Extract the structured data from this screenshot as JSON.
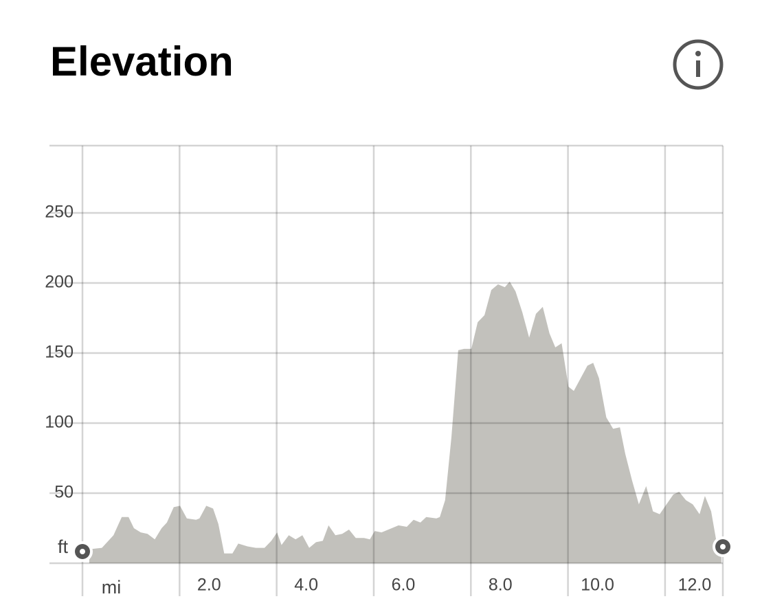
{
  "header": {
    "title": "Elevation"
  },
  "chart_data": {
    "type": "area",
    "xlabel": "mi",
    "ylabel": "ft",
    "color": "#c2c1bc",
    "grid": true,
    "xlim": [
      0,
      13.19
    ],
    "ylim": [
      0,
      300
    ],
    "xticks": [
      {
        "value": 2,
        "label": "2.0"
      },
      {
        "value": 4,
        "label": "4.0"
      },
      {
        "value": 6,
        "label": "6.0"
      },
      {
        "value": 8,
        "label": "8.0"
      },
      {
        "value": 10,
        "label": "10.0"
      },
      {
        "value": 12,
        "label": "12.0"
      }
    ],
    "yticks": [
      50,
      100,
      150,
      200,
      250
    ],
    "x": [
      0.14,
      0.4,
      0.64,
      0.81,
      0.95,
      1.06,
      1.2,
      1.34,
      1.49,
      1.63,
      1.74,
      1.88,
      2.01,
      2.15,
      2.34,
      2.41,
      2.55,
      2.69,
      2.8,
      2.92,
      3.09,
      3.21,
      3.4,
      3.57,
      3.75,
      3.89,
      4.01,
      4.1,
      4.25,
      4.39,
      4.53,
      4.67,
      4.81,
      4.95,
      5.07,
      5.21,
      5.35,
      5.49,
      5.63,
      5.8,
      5.92,
      6.02,
      6.16,
      6.37,
      6.51,
      6.68,
      6.82,
      6.96,
      7.08,
      7.29,
      7.36,
      7.47,
      7.6,
      7.74,
      7.86,
      8.01,
      8.14,
      8.28,
      8.42,
      8.56,
      8.7,
      8.8,
      8.92,
      9.06,
      9.2,
      9.34,
      9.48,
      9.62,
      9.74,
      9.87,
      10.01,
      10.12,
      10.26,
      10.4,
      10.52,
      10.64,
      10.79,
      10.93,
      11.07,
      11.18,
      11.32,
      11.46,
      11.61,
      11.75,
      11.89,
      12.03,
      12.17,
      12.29,
      12.43,
      12.57,
      12.71,
      12.82,
      12.95,
      13.05,
      13.16
    ],
    "values": [
      10,
      11,
      20,
      33,
      33,
      25,
      22,
      21,
      17,
      25,
      29,
      40,
      41,
      32,
      31,
      32,
      41,
      39,
      28,
      7,
      7,
      14,
      12,
      11,
      11,
      16,
      22,
      13,
      20,
      17,
      20,
      11,
      15,
      16,
      27,
      20,
      21,
      24,
      18,
      18,
      17,
      23,
      22,
      25,
      27,
      26,
      31,
      29,
      33,
      32,
      33,
      45,
      90,
      152,
      153,
      153,
      172,
      177,
      195,
      199,
      197,
      201,
      194,
      179,
      161,
      178,
      183,
      164,
      154,
      157,
      126,
      123,
      132,
      141,
      143,
      132,
      104,
      96,
      97,
      78,
      59,
      42,
      55,
      37,
      35,
      42,
      49,
      51,
      45,
      42,
      35,
      48,
      37,
      17,
      12
    ]
  }
}
